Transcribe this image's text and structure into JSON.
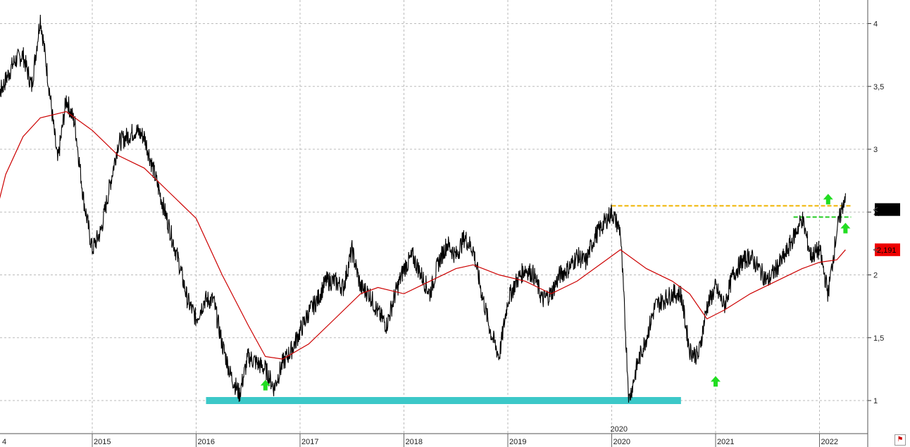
{
  "chart_data": {
    "type": "line",
    "title": "",
    "xlabel": "",
    "ylabel": "",
    "ylim": [
      0.75,
      4.2
    ],
    "y_ticks": [
      "1",
      "1,5",
      "2",
      "2,5",
      "3",
      "3,5",
      "4"
    ],
    "y_tick_values": [
      1,
      1.5,
      2,
      2.5,
      3,
      3.5,
      4
    ],
    "x_range": [
      "2014-01",
      "2022-04"
    ],
    "x_tick_labels": [
      "4",
      "2015",
      "2016",
      "2017",
      "2018",
      "2019",
      "2020",
      "2021",
      "2022"
    ],
    "x_tick_dates": [
      "2014",
      "2015",
      "2016",
      "2017",
      "2018",
      "2019",
      "2020",
      "2021",
      "2022"
    ],
    "secondary_label": "2020",
    "grid": true,
    "series": [
      {
        "color": "#000000",
        "style": "price",
        "points": [
          [
            "2014-01",
            2.85
          ],
          [
            "2014-02",
            3.4
          ],
          [
            "2014-03",
            3.55
          ],
          [
            "2014-04",
            3.7
          ],
          [
            "2014-05",
            3.75
          ],
          [
            "2014-06",
            3.5
          ],
          [
            "2014-07",
            4.05
          ],
          [
            "2014-08",
            3.5
          ],
          [
            "2014-09",
            2.9
          ],
          [
            "2014-10",
            3.4
          ],
          [
            "2014-11",
            3.2
          ],
          [
            "2014-12",
            2.6
          ],
          [
            "2015-01",
            2.2
          ],
          [
            "2015-02",
            2.35
          ],
          [
            "2015-03",
            2.7
          ],
          [
            "2015-04",
            3.05
          ],
          [
            "2015-05",
            3.1
          ],
          [
            "2015-06",
            3.15
          ],
          [
            "2015-07",
            3.1
          ],
          [
            "2015-08",
            2.85
          ],
          [
            "2015-09",
            2.6
          ],
          [
            "2015-10",
            2.35
          ],
          [
            "2015-11",
            2.1
          ],
          [
            "2015-12",
            1.8
          ],
          [
            "2016-01",
            1.65
          ],
          [
            "2016-02",
            1.8
          ],
          [
            "2016-03",
            1.8
          ],
          [
            "2016-04",
            1.45
          ],
          [
            "2016-05",
            1.2
          ],
          [
            "2016-06",
            1.05
          ],
          [
            "2016-07",
            1.35
          ],
          [
            "2016-08",
            1.3
          ],
          [
            "2016-09",
            1.25
          ],
          [
            "2016-10",
            1.1
          ],
          [
            "2016-11",
            1.3
          ],
          [
            "2016-12",
            1.4
          ],
          [
            "2017-01",
            1.55
          ],
          [
            "2017-02",
            1.7
          ],
          [
            "2017-03",
            1.8
          ],
          [
            "2017-04",
            1.95
          ],
          [
            "2017-05",
            1.95
          ],
          [
            "2017-06",
            1.9
          ],
          [
            "2017-07",
            2.2
          ],
          [
            "2017-08",
            1.9
          ],
          [
            "2017-09",
            1.85
          ],
          [
            "2017-10",
            1.7
          ],
          [
            "2017-11",
            1.6
          ],
          [
            "2017-12",
            1.85
          ],
          [
            "2018-01",
            2.05
          ],
          [
            "2018-02",
            2.15
          ],
          [
            "2018-03",
            2.0
          ],
          [
            "2018-04",
            1.85
          ],
          [
            "2018-05",
            2.1
          ],
          [
            "2018-06",
            2.25
          ],
          [
            "2018-07",
            2.15
          ],
          [
            "2018-08",
            2.3
          ],
          [
            "2018-09",
            2.2
          ],
          [
            "2018-10",
            1.85
          ],
          [
            "2018-11",
            1.55
          ],
          [
            "2018-12",
            1.35
          ],
          [
            "2019-01",
            1.8
          ],
          [
            "2019-02",
            1.95
          ],
          [
            "2019-03",
            2.05
          ],
          [
            "2019-04",
            2.0
          ],
          [
            "2019-05",
            1.8
          ],
          [
            "2019-06",
            1.85
          ],
          [
            "2019-07",
            2.0
          ],
          [
            "2019-08",
            2.05
          ],
          [
            "2019-09",
            2.15
          ],
          [
            "2019-10",
            2.1
          ],
          [
            "2019-11",
            2.3
          ],
          [
            "2019-12",
            2.4
          ],
          [
            "2020-01",
            2.5
          ],
          [
            "2020-02",
            2.35
          ],
          [
            "2020-03",
            1.0
          ],
          [
            "2020-04",
            1.3
          ],
          [
            "2020-05",
            1.5
          ],
          [
            "2020-06",
            1.75
          ],
          [
            "2020-07",
            1.8
          ],
          [
            "2020-08",
            1.85
          ],
          [
            "2020-09",
            1.85
          ],
          [
            "2020-10",
            1.4
          ],
          [
            "2020-11",
            1.35
          ],
          [
            "2020-12",
            1.75
          ],
          [
            "2021-01",
            1.9
          ],
          [
            "2021-02",
            1.75
          ],
          [
            "2021-03",
            2.0
          ],
          [
            "2021-04",
            2.1
          ],
          [
            "2021-05",
            2.15
          ],
          [
            "2021-06",
            2.05
          ],
          [
            "2021-07",
            1.95
          ],
          [
            "2021-08",
            2.05
          ],
          [
            "2021-09",
            2.15
          ],
          [
            "2021-10",
            2.3
          ],
          [
            "2021-11",
            2.45
          ],
          [
            "2021-12",
            2.15
          ],
          [
            "2022-01",
            2.2
          ],
          [
            "2022-02",
            1.85
          ],
          [
            "2022-03",
            2.35
          ],
          [
            "2022-04",
            2.65
          ]
        ]
      },
      {
        "color": "#cc0000",
        "style": "moving-average",
        "points": [
          [
            "2014-01",
            2.25
          ],
          [
            "2014-03",
            2.8
          ],
          [
            "2014-05",
            3.1
          ],
          [
            "2014-07",
            3.25
          ],
          [
            "2014-10",
            3.3
          ],
          [
            "2015-01",
            3.15
          ],
          [
            "2015-04",
            2.95
          ],
          [
            "2015-07",
            2.85
          ],
          [
            "2015-10",
            2.65
          ],
          [
            "2016-01",
            2.45
          ],
          [
            "2016-04",
            2.0
          ],
          [
            "2016-07",
            1.6
          ],
          [
            "2016-09",
            1.35
          ],
          [
            "2016-11",
            1.33
          ],
          [
            "2017-02",
            1.45
          ],
          [
            "2017-05",
            1.65
          ],
          [
            "2017-08",
            1.85
          ],
          [
            "2017-10",
            1.9
          ],
          [
            "2018-01",
            1.85
          ],
          [
            "2018-04",
            1.95
          ],
          [
            "2018-07",
            2.05
          ],
          [
            "2018-09",
            2.08
          ],
          [
            "2018-12",
            2.0
          ],
          [
            "2019-03",
            1.95
          ],
          [
            "2019-06",
            1.85
          ],
          [
            "2019-09",
            1.95
          ],
          [
            "2019-12",
            2.1
          ],
          [
            "2020-02",
            2.2
          ],
          [
            "2020-05",
            2.05
          ],
          [
            "2020-08",
            1.95
          ],
          [
            "2020-10",
            1.85
          ],
          [
            "2020-12",
            1.65
          ],
          [
            "2021-02",
            1.72
          ],
          [
            "2021-05",
            1.85
          ],
          [
            "2021-08",
            1.95
          ],
          [
            "2021-11",
            2.05
          ],
          [
            "2022-01",
            2.1
          ],
          [
            "2022-03",
            2.12
          ],
          [
            "2022-04",
            2.2
          ]
        ]
      }
    ],
    "annotations": {
      "support_zone": {
        "y": 1.0,
        "x_start": "2016-01",
        "x_end": "2020-09",
        "color": "#3cc8c8"
      },
      "resistance_line": {
        "y": 2.55,
        "x_start": "2020-01",
        "x_end": "2022-04",
        "color": "#f0b400"
      },
      "breakout_line": {
        "y": 2.46,
        "x_start": "2021-10",
        "x_end": "2022-04",
        "color": "#22cc22"
      },
      "up_arrows": [
        {
          "x": "2016-09",
          "y": 1.12
        },
        {
          "x": "2021-01",
          "y": 1.15
        },
        {
          "x": "2022-02",
          "y": 2.6
        },
        {
          "x": "2022-04",
          "y": 2.37
        }
      ],
      "arrow_color": "#22dd22",
      "last_price_box": {
        "y": 2.52,
        "color": "#000000",
        "text": ""
      },
      "ma_value_box": {
        "y": 2.2,
        "color": "#ee0000",
        "text": "2,191"
      }
    }
  }
}
